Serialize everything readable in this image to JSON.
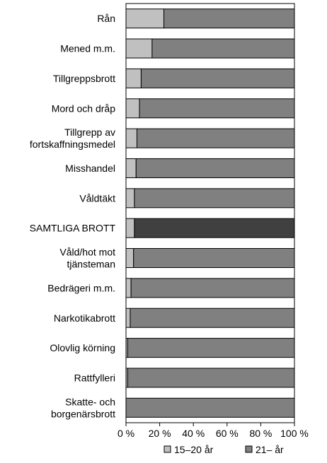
{
  "chart_data": {
    "type": "bar",
    "orientation": "horizontal",
    "stacked": "percent",
    "title": "",
    "xlabel": "",
    "ylabel": "",
    "xlim": [
      0,
      100
    ],
    "x_ticks": [
      "0 %",
      "20 %",
      "40 %",
      "60 %",
      "80 %",
      "100 %"
    ],
    "grid": false,
    "legend_position": "bottom",
    "categories": [
      [
        "Rån"
      ],
      [
        "Mened m.m."
      ],
      [
        "Tillgreppsbrott"
      ],
      [
        "Mord och dråp"
      ],
      [
        "Tillgrepp av",
        "fortskaffningsmedel"
      ],
      [
        "Misshandel"
      ],
      [
        "Våldtäkt"
      ],
      [
        "SAMTLIGA BROTT"
      ],
      [
        "Våld/hot mot",
        "tjänsteman"
      ],
      [
        "Bedrägeri m.m."
      ],
      [
        "Narkotikabrott"
      ],
      [
        "Olovlig körning"
      ],
      [
        "Rattfylleri"
      ],
      [
        "Skatte- och",
        "borgenärsbrott"
      ]
    ],
    "highlight_category_index": 7,
    "series": [
      {
        "name": "15–20 år",
        "color": "#c0c0c0",
        "values": [
          22.5,
          15.5,
          9,
          8,
          6.5,
          6,
          5,
          5,
          4.5,
          3,
          2.5,
          1,
          1,
          0
        ]
      },
      {
        "name": "21– år",
        "color": "#808080",
        "highlight_color": "#404040",
        "values": [
          77.5,
          84.5,
          91,
          92,
          93.5,
          94,
          95,
          95,
          95.5,
          97,
          97.5,
          99,
          99,
          100
        ]
      }
    ]
  }
}
